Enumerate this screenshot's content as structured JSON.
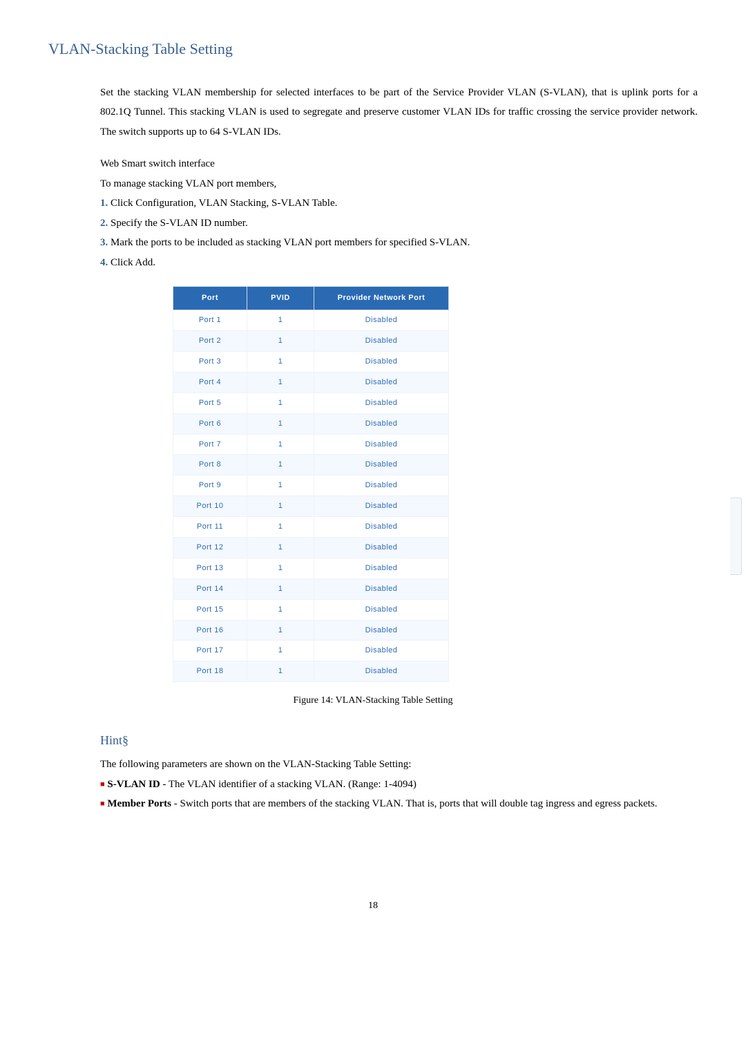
{
  "section_title": "VLAN-Stacking Table Setting",
  "intro_paragraph": "Set the stacking VLAN membership for selected interfaces to be part of the Service Provider VLAN (S-VLAN), that is uplink ports for a 802.1Q Tunnel. This stacking VLAN is used to segregate and preserve customer VLAN IDs for traffic crossing the service provider network. The switch supports up to 64 S-VLAN IDs.",
  "interface_label": "Web Smart switch interface",
  "manage_label": "To manage stacking VLAN port members,",
  "steps": [
    {
      "num": "1.",
      "text": " Click Configuration, VLAN Stacking, S-VLAN Table."
    },
    {
      "num": "2.",
      "text": " Specify the S-VLAN ID number."
    },
    {
      "num": "3.",
      "text": " Mark the ports to be included as stacking VLAN port members for specified S-VLAN."
    },
    {
      "num": "4.",
      "text": " Click Add."
    }
  ],
  "table": {
    "headers": {
      "port": "Port",
      "pvid": "PVID",
      "provider": "Provider Network Port"
    },
    "header_bg": "#2a6ab3",
    "header_color": "#ffffff",
    "cell_color": "#2a6ab3",
    "rows": [
      {
        "port": "Port 1",
        "pvid": "1",
        "status": "Disabled"
      },
      {
        "port": "Port 2",
        "pvid": "1",
        "status": "Disabled"
      },
      {
        "port": "Port 3",
        "pvid": "1",
        "status": "Disabled"
      },
      {
        "port": "Port 4",
        "pvid": "1",
        "status": "Disabled"
      },
      {
        "port": "Port 5",
        "pvid": "1",
        "status": "Disabled"
      },
      {
        "port": "Port 6",
        "pvid": "1",
        "status": "Disabled"
      },
      {
        "port": "Port 7",
        "pvid": "1",
        "status": "Disabled"
      },
      {
        "port": "Port 8",
        "pvid": "1",
        "status": "Disabled"
      },
      {
        "port": "Port 9",
        "pvid": "1",
        "status": "Disabled"
      },
      {
        "port": "Port 10",
        "pvid": "1",
        "status": "Disabled"
      },
      {
        "port": "Port 11",
        "pvid": "1",
        "status": "Disabled"
      },
      {
        "port": "Port 12",
        "pvid": "1",
        "status": "Disabled"
      },
      {
        "port": "Port 13",
        "pvid": "1",
        "status": "Disabled"
      },
      {
        "port": "Port 14",
        "pvid": "1",
        "status": "Disabled"
      },
      {
        "port": "Port 15",
        "pvid": "1",
        "status": "Disabled"
      },
      {
        "port": "Port 16",
        "pvid": "1",
        "status": "Disabled"
      },
      {
        "port": "Port 17",
        "pvid": "1",
        "status": "Disabled"
      },
      {
        "port": "Port 18",
        "pvid": "1",
        "status": "Disabled"
      }
    ]
  },
  "caption": "Figure 14: VLAN-Stacking Table Setting",
  "hint_title": "Hint§",
  "hint_intro": "The following parameters are shown on the VLAN-Stacking Table Setting:",
  "hints": [
    {
      "label": "S-VLAN ID",
      "text": " - The VLAN identifier of a stacking VLAN. (Range: 1-4094)"
    },
    {
      "label": "Member Ports",
      "text": " - Switch ports that are members of the stacking VLAN. That is, ports that will double tag ingress and egress packets."
    }
  ],
  "page_number": "18",
  "colors": {
    "heading": "#365f91",
    "step_num": "#365f91",
    "bullet": "#c00000"
  }
}
